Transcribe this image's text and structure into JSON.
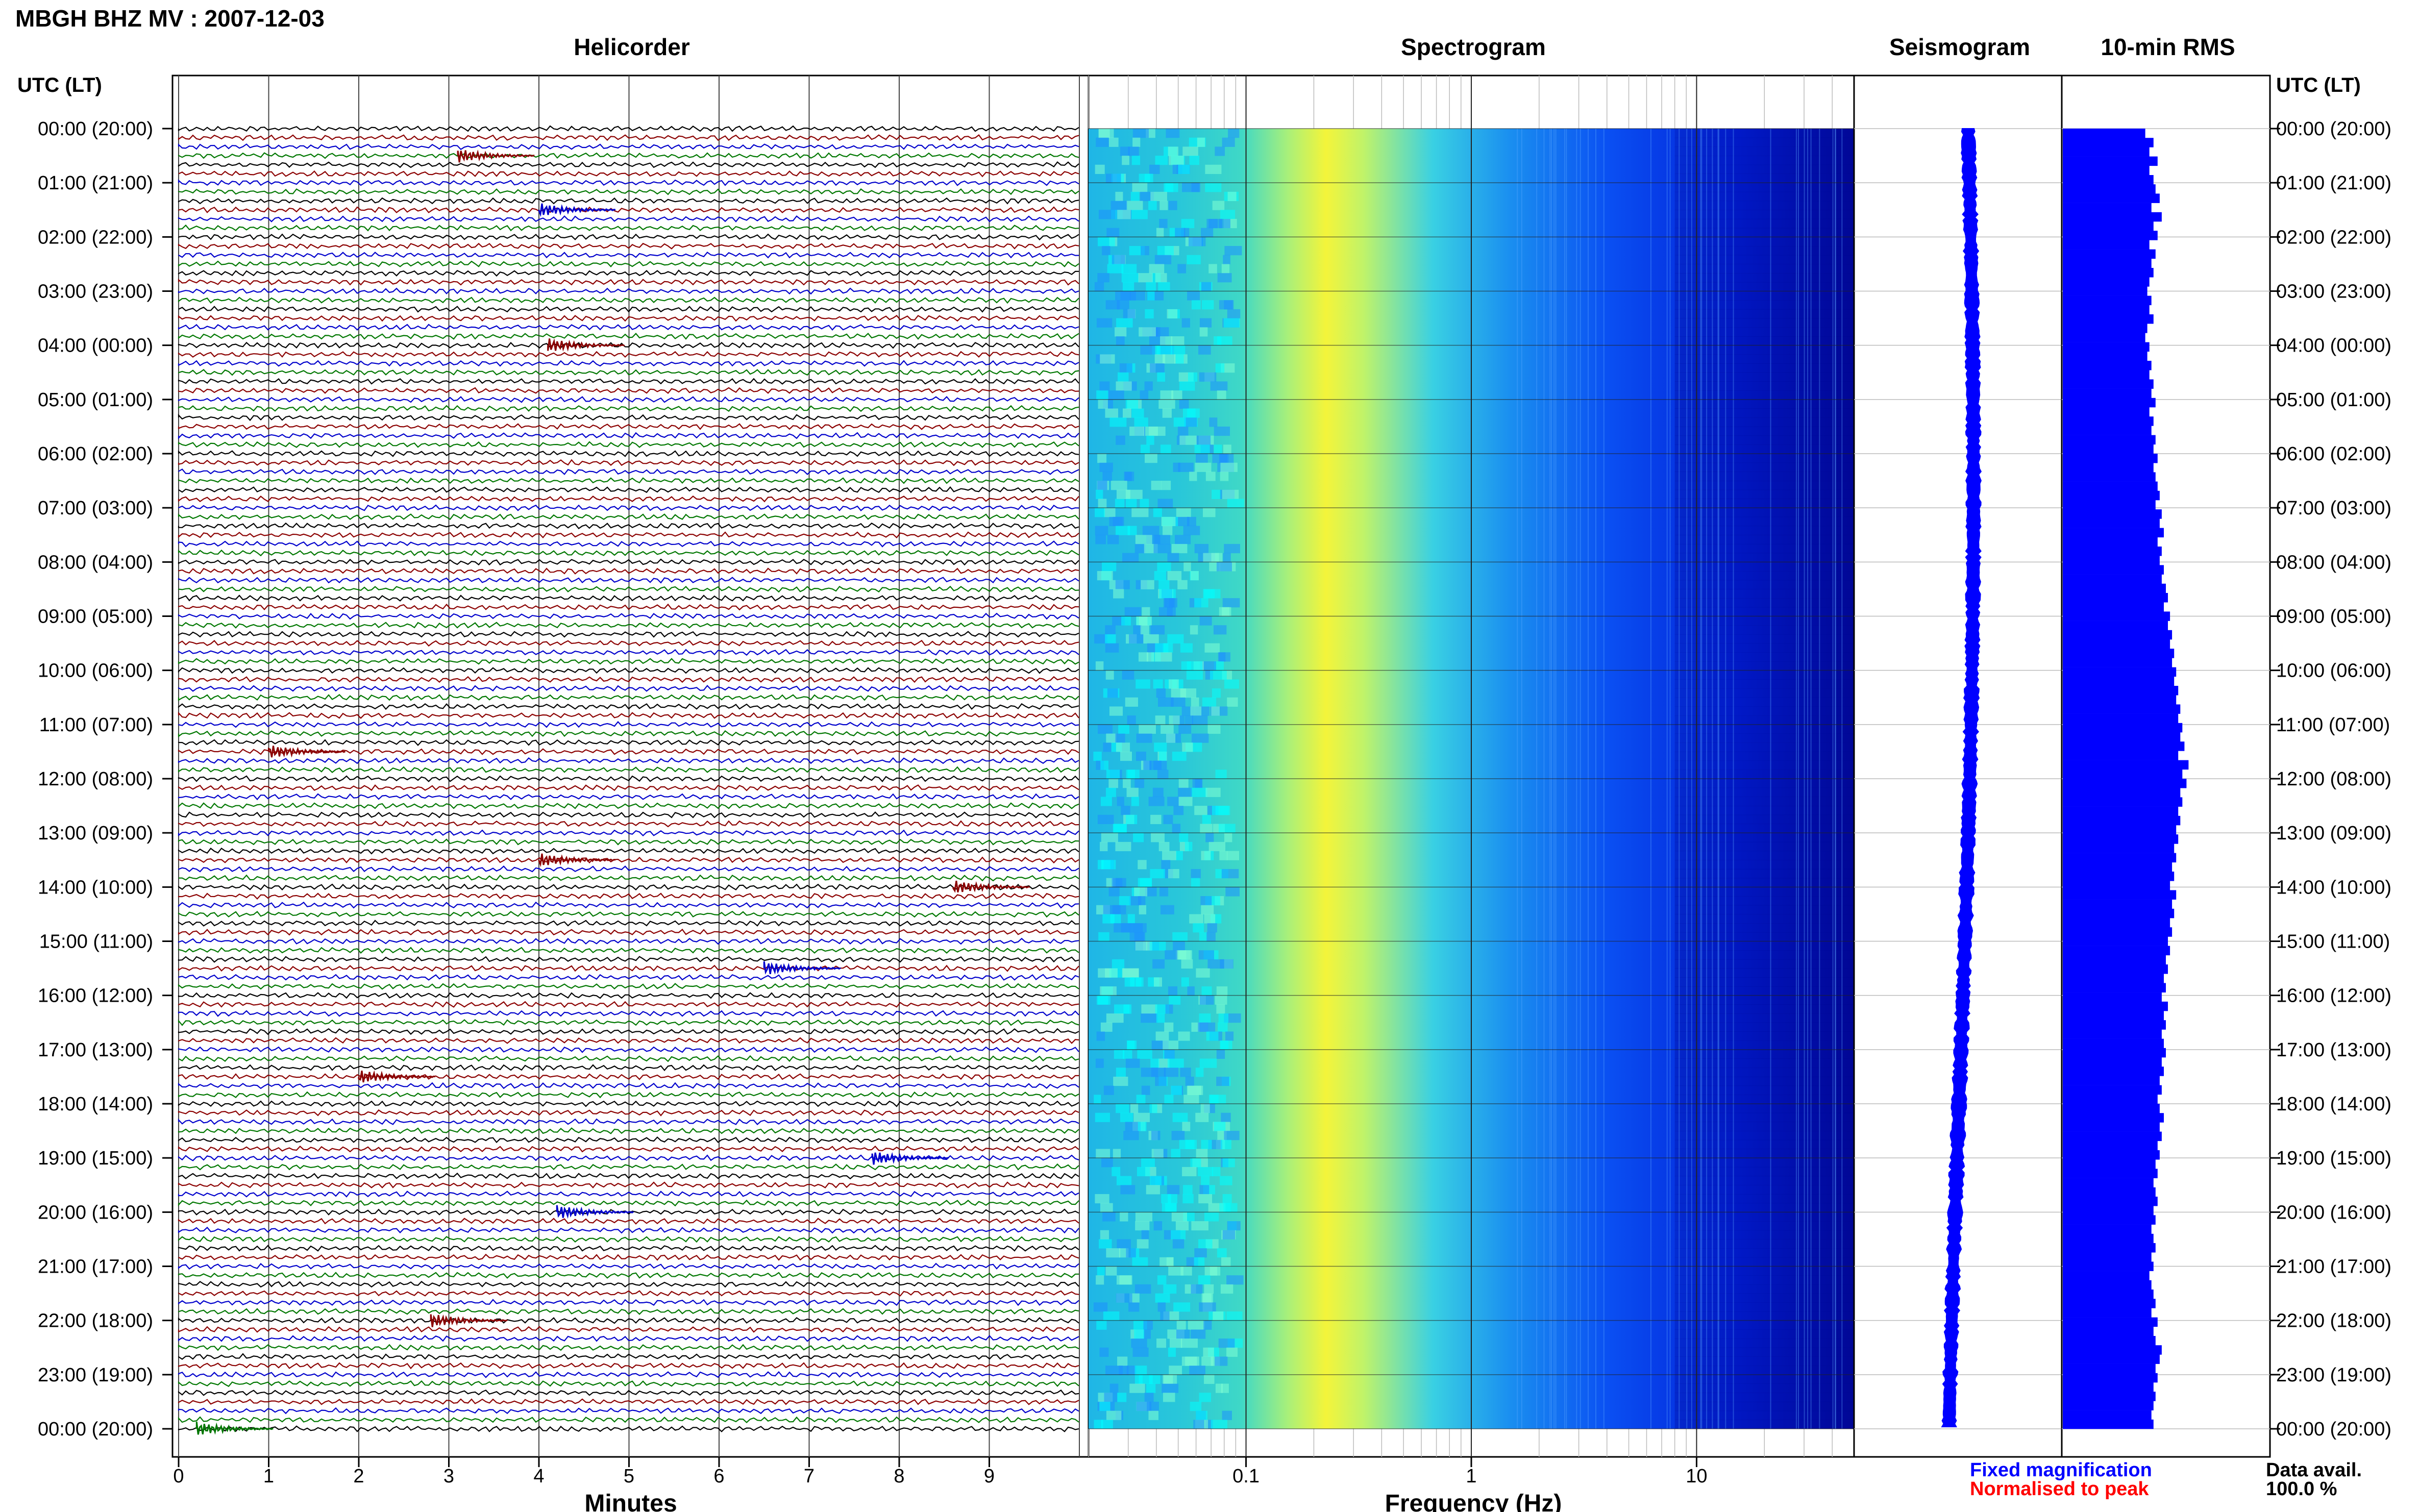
{
  "chart_data": {
    "type": "heatmap",
    "title": "MBGH BHZ MV : 2007-12-03",
    "panels": {
      "helicorder": "Helicorder",
      "spectrogram": "Spectrogram",
      "seismogram": "Seismogram",
      "rms": "10-min RMS"
    },
    "time_header": "UTC (LT)",
    "time_labels": [
      "00:00 (20:00)",
      "01:00 (21:00)",
      "02:00 (22:00)",
      "03:00 (23:00)",
      "04:00 (00:00)",
      "05:00 (01:00)",
      "06:00 (02:00)",
      "07:00 (03:00)",
      "08:00 (04:00)",
      "09:00 (05:00)",
      "10:00 (06:00)",
      "11:00 (07:00)",
      "12:00 (08:00)",
      "13:00 (09:00)",
      "14:00 (10:00)",
      "15:00 (11:00)",
      "16:00 (12:00)",
      "17:00 (13:00)",
      "18:00 (14:00)",
      "19:00 (15:00)",
      "20:00 (16:00)",
      "21:00 (17:00)",
      "22:00 (18:00)",
      "23:00 (19:00)",
      "00:00 (20:00)"
    ],
    "helicorder": {
      "xlabel": "Minutes",
      "x_ticks": [
        "0",
        "1",
        "2",
        "3",
        "4",
        "5",
        "6",
        "7",
        "8",
        "9"
      ],
      "xlim": [
        0,
        10
      ],
      "rows_per_hour": 6,
      "trace_colors": [
        "#000000",
        "#8b0000",
        "#0000cc",
        "#007700"
      ],
      "events": [
        {
          "hour": 0.5,
          "minute": 3.1,
          "color": "#8b0000"
        },
        {
          "hour": 1.5,
          "minute": 4.0,
          "color": "#0000cc"
        },
        {
          "hour": 4.0,
          "minute": 4.1,
          "color": "#8b0000"
        },
        {
          "hour": 11.5,
          "minute": 1.0,
          "color": "#8b0000"
        },
        {
          "hour": 13.5,
          "minute": 4.0,
          "color": "#8b0000"
        },
        {
          "hour": 14.0,
          "minute": 8.6,
          "color": "#8b0000"
        },
        {
          "hour": 15.5,
          "minute": 6.5,
          "color": "#0000cc"
        },
        {
          "hour": 17.5,
          "minute": 2.0,
          "color": "#8b0000"
        },
        {
          "hour": 19.0,
          "minute": 7.7,
          "color": "#0000cc"
        },
        {
          "hour": 20.0,
          "minute": 4.2,
          "color": "#0000cc"
        },
        {
          "hour": 22.0,
          "minute": 2.8,
          "color": "#8b0000"
        },
        {
          "hour": 24.0,
          "minute": 0.2,
          "color": "#007700"
        }
      ]
    },
    "spectrogram": {
      "xlabel": "Frequency (Hz)",
      "x_scale": "log",
      "xlim": [
        0.02,
        50
      ],
      "x_ticks": [
        0.1,
        1,
        10
      ],
      "x_tick_labels": [
        "0.1",
        "1",
        "10"
      ],
      "peak_frequency_hz": 0.25,
      "colormap": [
        "#00008b",
        "#0000ff",
        "#1e90ff",
        "#00ffff",
        "#7fffd4",
        "#ffff00"
      ]
    },
    "seismogram": {
      "color": "#0000ff"
    },
    "rms": {
      "color": "#0000ff",
      "values": [
        0.4,
        0.44,
        0.42,
        0.46,
        0.42,
        0.44,
        0.45,
        0.47,
        0.43,
        0.48,
        0.44,
        0.46,
        0.42,
        0.45,
        0.43,
        0.44,
        0.42,
        0.41,
        0.43,
        0.42,
        0.44,
        0.41,
        0.4,
        0.42,
        0.41,
        0.43,
        0.42,
        0.44,
        0.43,
        0.45,
        0.42,
        0.44,
        0.43,
        0.45,
        0.44,
        0.46,
        0.44,
        0.45,
        0.46,
        0.47,
        0.45,
        0.48,
        0.47,
        0.49,
        0.46,
        0.48,
        0.47,
        0.49,
        0.48,
        0.5,
        0.51,
        0.49,
        0.52,
        0.51,
        0.53,
        0.52,
        0.54,
        0.53,
        0.55,
        0.54,
        0.56,
        0.55,
        0.57,
        0.56,
        0.58,
        0.57,
        0.59,
        0.56,
        0.61,
        0.58,
        0.6,
        0.57,
        0.58,
        0.56,
        0.57,
        0.55,
        0.56,
        0.54,
        0.55,
        0.53,
        0.54,
        0.52,
        0.55,
        0.53,
        0.54,
        0.52,
        0.53,
        0.51,
        0.52,
        0.5,
        0.51,
        0.49,
        0.5,
        0.48,
        0.51,
        0.49,
        0.5,
        0.48,
        0.49,
        0.5,
        0.48,
        0.49,
        0.47,
        0.48,
        0.46,
        0.47,
        0.49,
        0.47,
        0.48,
        0.46,
        0.47,
        0.45,
        0.46,
        0.44,
        0.45,
        0.46,
        0.44,
        0.45,
        0.43,
        0.44,
        0.45,
        0.43,
        0.44,
        0.42,
        0.43,
        0.44,
        0.45,
        0.43,
        0.46,
        0.44,
        0.45,
        0.48,
        0.47,
        0.45,
        0.46,
        0.44,
        0.45,
        0.44,
        0.43,
        0.44
      ],
      "xlim": [
        0,
        1
      ]
    },
    "legend": {
      "fixed": "Fixed magnification",
      "fixed_color": "#0000ff",
      "normalised": "Normalised to peak",
      "normalised_color": "#ff0000"
    },
    "data_avail_label": "Data avail.",
    "data_avail_value": "100.0 %"
  }
}
